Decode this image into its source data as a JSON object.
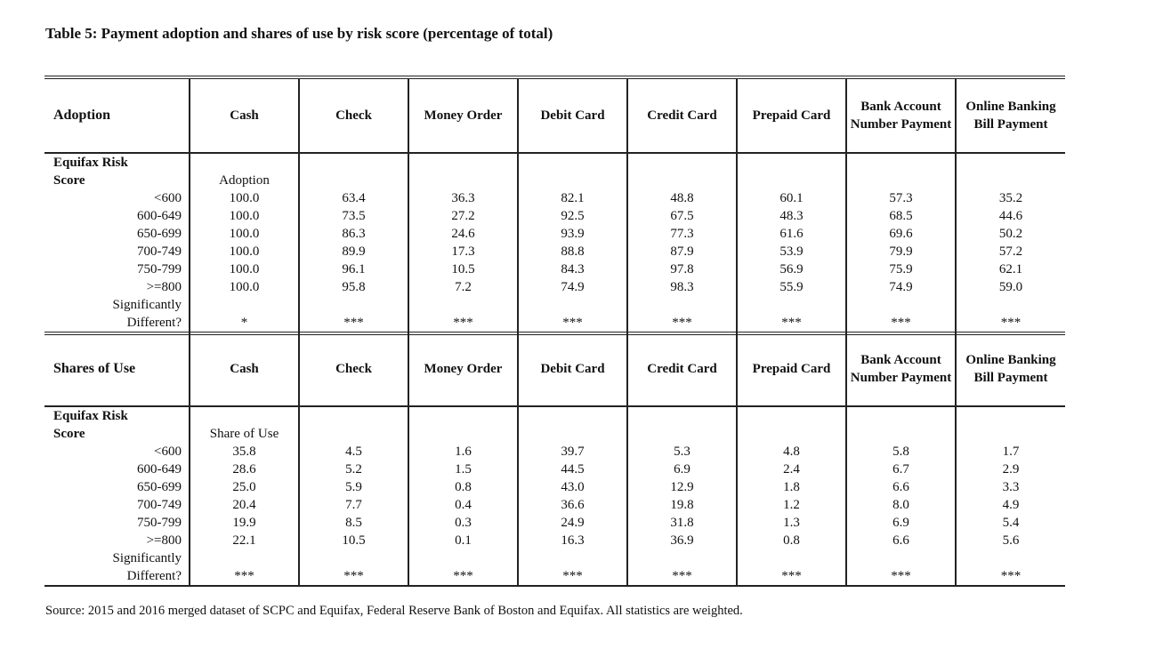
{
  "title": "Table 5: Payment adoption and shares of use by risk score (percentage of total)",
  "columns": [
    "Cash",
    "Check",
    "Money Order",
    "Debit Card",
    "Credit Card",
    "Prepaid Card",
    "Bank Account Number Payment",
    "Online Banking Bill Payment"
  ],
  "row_label_header": [
    "Equifax Risk",
    "Score"
  ],
  "row_labels": [
    "<600",
    "600-649",
    "650-699",
    "700-749",
    "750-799",
    ">=800"
  ],
  "sig_label": [
    "Significantly",
    "Different?"
  ],
  "sections": [
    {
      "heading": "Adoption",
      "sub_label": "Adoption",
      "rows": [
        [
          "100.0",
          "63.4",
          "36.3",
          "82.1",
          "48.8",
          "60.1",
          "57.3",
          "35.2"
        ],
        [
          "100.0",
          "73.5",
          "27.2",
          "92.5",
          "67.5",
          "48.3",
          "68.5",
          "44.6"
        ],
        [
          "100.0",
          "86.3",
          "24.6",
          "93.9",
          "77.3",
          "61.6",
          "69.6",
          "50.2"
        ],
        [
          "100.0",
          "89.9",
          "17.3",
          "88.8",
          "87.9",
          "53.9",
          "79.9",
          "57.2"
        ],
        [
          "100.0",
          "96.1",
          "10.5",
          "84.3",
          "97.8",
          "56.9",
          "75.9",
          "62.1"
        ],
        [
          "100.0",
          "95.8",
          "7.2",
          "74.9",
          "98.3",
          "55.9",
          "74.9",
          "59.0"
        ]
      ],
      "significance": [
        "*",
        "***",
        "***",
        "***",
        "***",
        "***",
        "***",
        "***"
      ]
    },
    {
      "heading": "Shares of Use",
      "sub_label": "Share of Use",
      "rows": [
        [
          "35.8",
          "4.5",
          "1.6",
          "39.7",
          "5.3",
          "4.8",
          "5.8",
          "1.7"
        ],
        [
          "28.6",
          "5.2",
          "1.5",
          "44.5",
          "6.9",
          "2.4",
          "6.7",
          "2.9"
        ],
        [
          "25.0",
          "5.9",
          "0.8",
          "43.0",
          "12.9",
          "1.8",
          "6.6",
          "3.3"
        ],
        [
          "20.4",
          "7.7",
          "0.4",
          "36.6",
          "19.8",
          "1.2",
          "8.0",
          "4.9"
        ],
        [
          "19.9",
          "8.5",
          "0.3",
          "24.9",
          "31.8",
          "1.3",
          "6.9",
          "5.4"
        ],
        [
          "22.1",
          "10.5",
          "0.1",
          "16.3",
          "36.9",
          "0.8",
          "6.6",
          "5.6"
        ]
      ],
      "significance": [
        "***",
        "***",
        "***",
        "***",
        "***",
        "***",
        "***",
        "***"
      ]
    }
  ],
  "source": "Source: 2015 and 2016 merged dataset of SCPC and Equifax, Federal Reserve Bank of Boston and Equifax. All statistics are weighted."
}
